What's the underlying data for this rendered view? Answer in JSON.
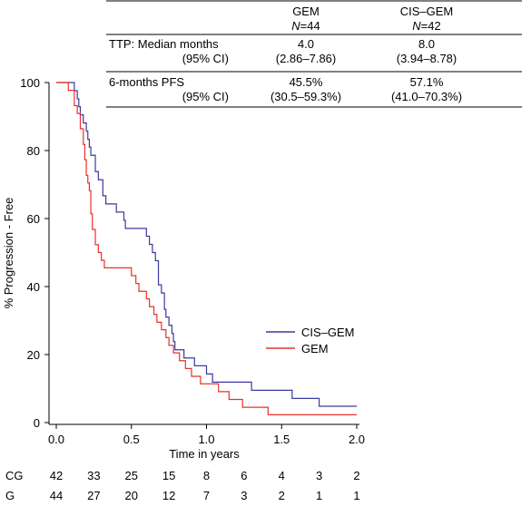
{
  "summary_table": {
    "col_headers": [
      {
        "name": "GEM",
        "n": "N=44"
      },
      {
        "name": "CIS–GEM",
        "n": "N=42"
      }
    ],
    "rows": [
      {
        "label": "TTP: Median months",
        "sublabel": "(95% CI)",
        "values": [
          "4.0",
          "8.0"
        ],
        "ci": [
          "(2.86–7.86)",
          "(3.94–8.78)"
        ]
      },
      {
        "label": "6-months PFS",
        "sublabel": "(95% CI)",
        "values": [
          "45.5%",
          "57.1%"
        ],
        "ci": [
          "(30.5–59.3%)",
          "(41.0–70.3%)"
        ]
      }
    ]
  },
  "colors": {
    "cis_gem": "#3a3a9e",
    "gem": "#e8322a",
    "axis": "#000000"
  },
  "risk_table": {
    "rows": [
      {
        "label": "CG",
        "counts": [
          "42",
          "33",
          "25",
          "15",
          "8",
          "6",
          "4",
          "3",
          "2"
        ]
      },
      {
        "label": "G",
        "counts": [
          "44",
          "27",
          "20",
          "12",
          "7",
          "3",
          "2",
          "1",
          "1"
        ]
      }
    ]
  },
  "chart_data": {
    "type": "line",
    "title": "",
    "xlabel": "Time in years",
    "ylabel": "% Progression - Free",
    "xlim": [
      0,
      2.0
    ],
    "ylim": [
      0,
      100
    ],
    "xticks": [
      "0.0",
      "0.5",
      "1.0",
      "1.5",
      "2.0"
    ],
    "xtick_values": [
      0,
      0.5,
      1.0,
      1.5,
      2.0
    ],
    "yticks": [
      "0",
      "20",
      "40",
      "60",
      "80",
      "100"
    ],
    "ytick_values": [
      0,
      20,
      40,
      60,
      80,
      100
    ],
    "risk_times": [
      0,
      0.25,
      0.5,
      0.75,
      1.0,
      1.25,
      1.5,
      1.75,
      2.0
    ],
    "legend_position": "right",
    "series": [
      {
        "name": "CIS–GEM",
        "color": "#3a3a9e",
        "points": [
          [
            0,
            100
          ],
          [
            0.08,
            100
          ],
          [
            0.12,
            97.6
          ],
          [
            0.14,
            95.2
          ],
          [
            0.15,
            92.9
          ],
          [
            0.16,
            90.5
          ],
          [
            0.18,
            88.1
          ],
          [
            0.2,
            85.7
          ],
          [
            0.21,
            83.3
          ],
          [
            0.22,
            81.0
          ],
          [
            0.23,
            78.6
          ],
          [
            0.26,
            73.8
          ],
          [
            0.28,
            71.4
          ],
          [
            0.31,
            66.7
          ],
          [
            0.33,
            64.3
          ],
          [
            0.4,
            61.9
          ],
          [
            0.45,
            59.5
          ],
          [
            0.46,
            57.1
          ],
          [
            0.6,
            54.8
          ],
          [
            0.62,
            52.4
          ],
          [
            0.64,
            50.0
          ],
          [
            0.66,
            47.6
          ],
          [
            0.68,
            40.5
          ],
          [
            0.7,
            38.1
          ],
          [
            0.72,
            33.3
          ],
          [
            0.73,
            31.0
          ],
          [
            0.75,
            28.6
          ],
          [
            0.77,
            26.2
          ],
          [
            0.78,
            23.8
          ],
          [
            0.79,
            21.4
          ],
          [
            0.85,
            19.0
          ],
          [
            0.92,
            16.7
          ],
          [
            1.0,
            14.3
          ],
          [
            1.04,
            11.9
          ],
          [
            1.3,
            9.5
          ],
          [
            1.57,
            7.1
          ],
          [
            1.75,
            4.8
          ],
          [
            2.0,
            4.8
          ]
        ]
      },
      {
        "name": "GEM",
        "color": "#e8322a",
        "points": [
          [
            0,
            100
          ],
          [
            0.08,
            97.7
          ],
          [
            0.12,
            93.2
          ],
          [
            0.14,
            90.9
          ],
          [
            0.16,
            86.4
          ],
          [
            0.18,
            81.8
          ],
          [
            0.19,
            77.3
          ],
          [
            0.2,
            72.7
          ],
          [
            0.21,
            70.5
          ],
          [
            0.22,
            68.2
          ],
          [
            0.23,
            61.4
          ],
          [
            0.24,
            56.8
          ],
          [
            0.26,
            52.3
          ],
          [
            0.28,
            50.0
          ],
          [
            0.3,
            47.7
          ],
          [
            0.32,
            45.5
          ],
          [
            0.5,
            43.2
          ],
          [
            0.53,
            40.9
          ],
          [
            0.55,
            38.6
          ],
          [
            0.6,
            36.4
          ],
          [
            0.62,
            34.1
          ],
          [
            0.65,
            31.8
          ],
          [
            0.67,
            29.5
          ],
          [
            0.7,
            27.3
          ],
          [
            0.73,
            25.0
          ],
          [
            0.75,
            22.7
          ],
          [
            0.78,
            20.5
          ],
          [
            0.82,
            18.2
          ],
          [
            0.86,
            15.9
          ],
          [
            0.9,
            13.6
          ],
          [
            0.96,
            11.4
          ],
          [
            1.08,
            9.1
          ],
          [
            1.15,
            6.8
          ],
          [
            1.24,
            4.5
          ],
          [
            1.41,
            2.3
          ],
          [
            2.0,
            2.3
          ]
        ]
      }
    ]
  }
}
